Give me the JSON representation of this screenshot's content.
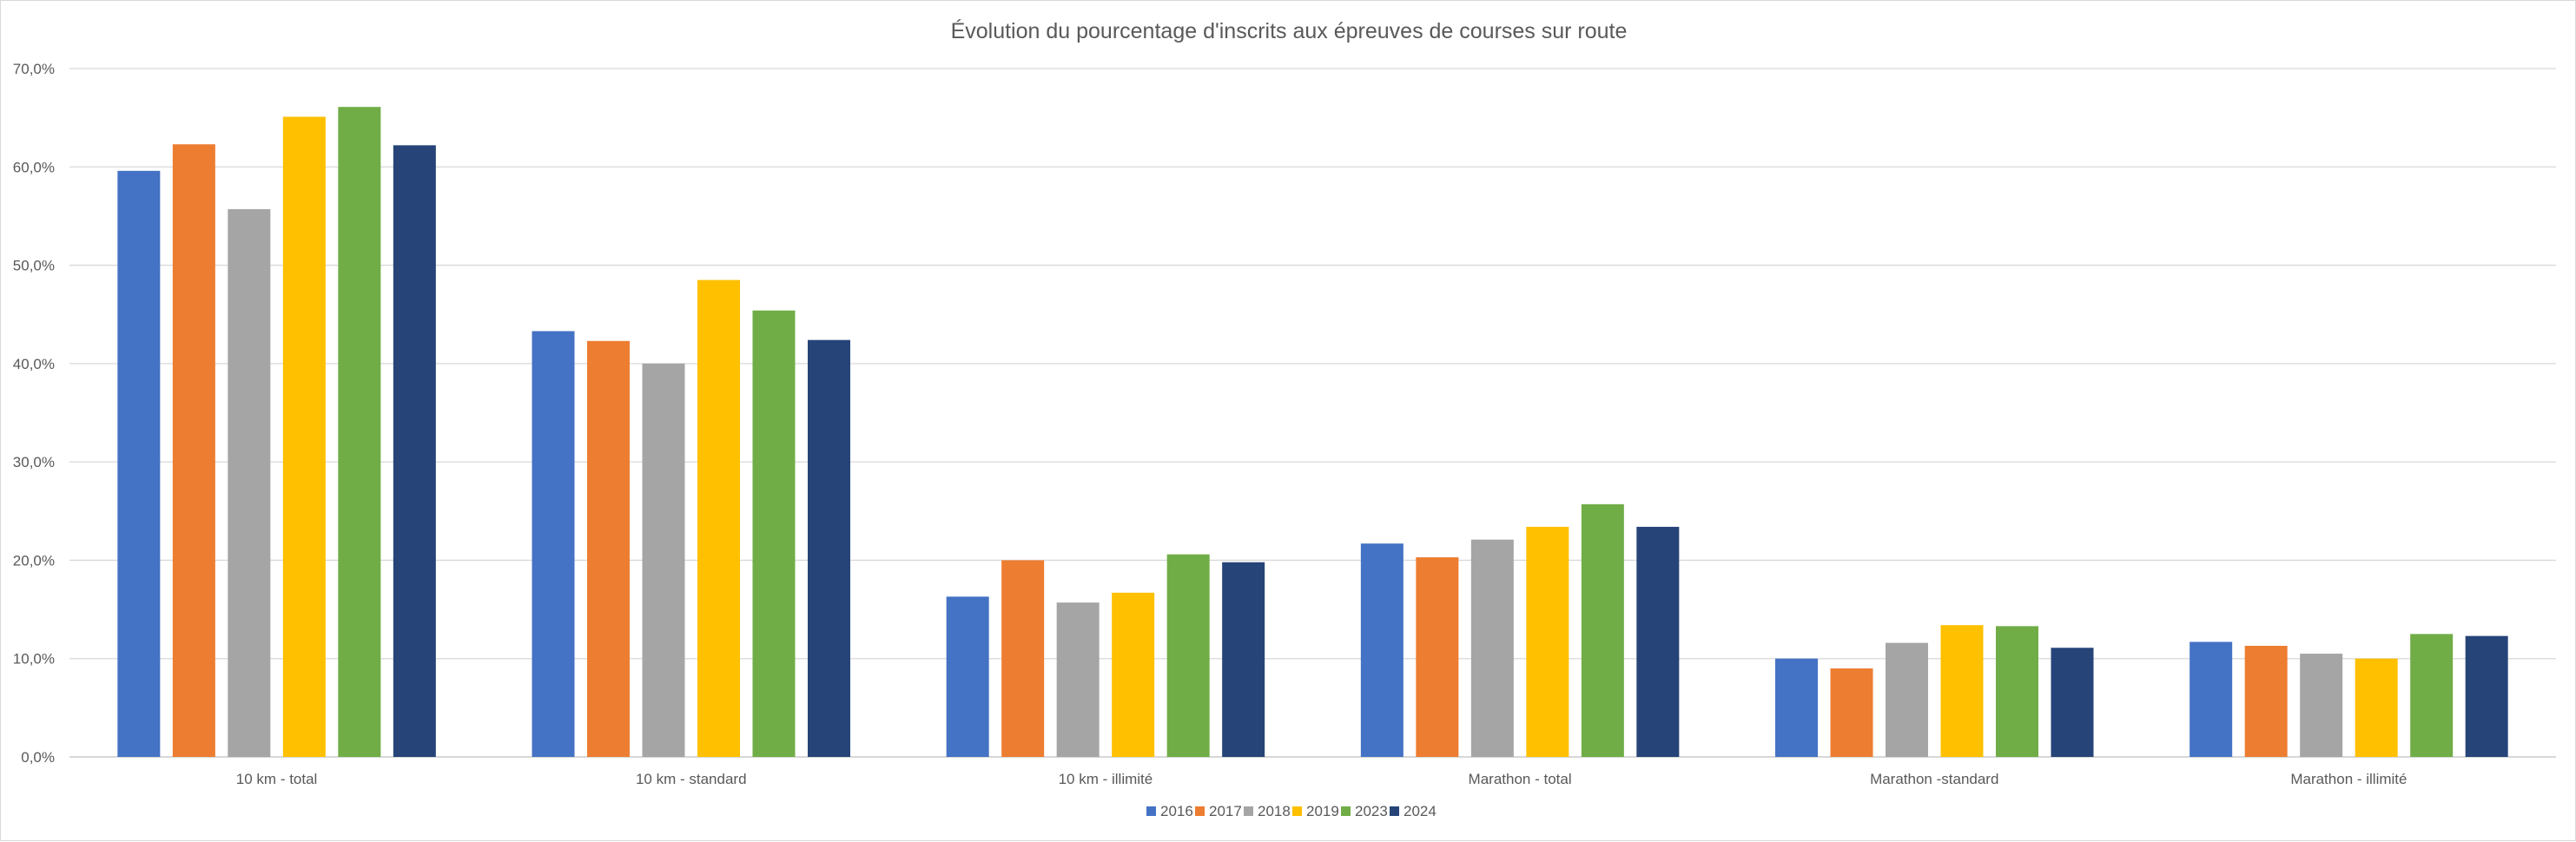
{
  "chart_data": {
    "type": "bar",
    "title": "Évolution du pourcentage d'inscrits aux épreuves de courses sur route",
    "xlabel": "",
    "ylabel": "",
    "ylim": [
      0,
      70
    ],
    "y_ticks": [
      "0,0%",
      "10,0%",
      "20,0%",
      "30,0%",
      "40,0%",
      "50,0%",
      "60,0%",
      "70,0%"
    ],
    "y_tick_values": [
      0,
      10,
      20,
      30,
      40,
      50,
      60,
      70
    ],
    "grid": true,
    "legend_position": "bottom",
    "categories": [
      "10 km - total",
      "10 km - standard",
      "10 km - illimité",
      "Marathon - total",
      "Marathon -standard",
      "Marathon - illimité"
    ],
    "series": [
      {
        "name": "2016",
        "color": "#4472C4",
        "values": [
          59.6,
          43.3,
          16.3,
          21.7,
          10.0,
          11.7
        ]
      },
      {
        "name": "2017",
        "color": "#ED7D31",
        "values": [
          62.3,
          42.3,
          20.0,
          20.3,
          9.0,
          11.3
        ]
      },
      {
        "name": "2018",
        "color": "#A5A5A5",
        "values": [
          55.7,
          40.0,
          15.7,
          22.1,
          11.6,
          10.5
        ]
      },
      {
        "name": "2019",
        "color": "#FFC000",
        "values": [
          65.1,
          48.5,
          16.7,
          23.4,
          13.4,
          10.0
        ]
      },
      {
        "name": "2023",
        "color": "#70AD47",
        "values": [
          66.1,
          45.4,
          20.6,
          25.7,
          13.3,
          12.5
        ]
      },
      {
        "name": "2024",
        "color": "#264478",
        "values": [
          62.2,
          42.4,
          19.8,
          23.4,
          11.1,
          12.3
        ]
      }
    ]
  }
}
